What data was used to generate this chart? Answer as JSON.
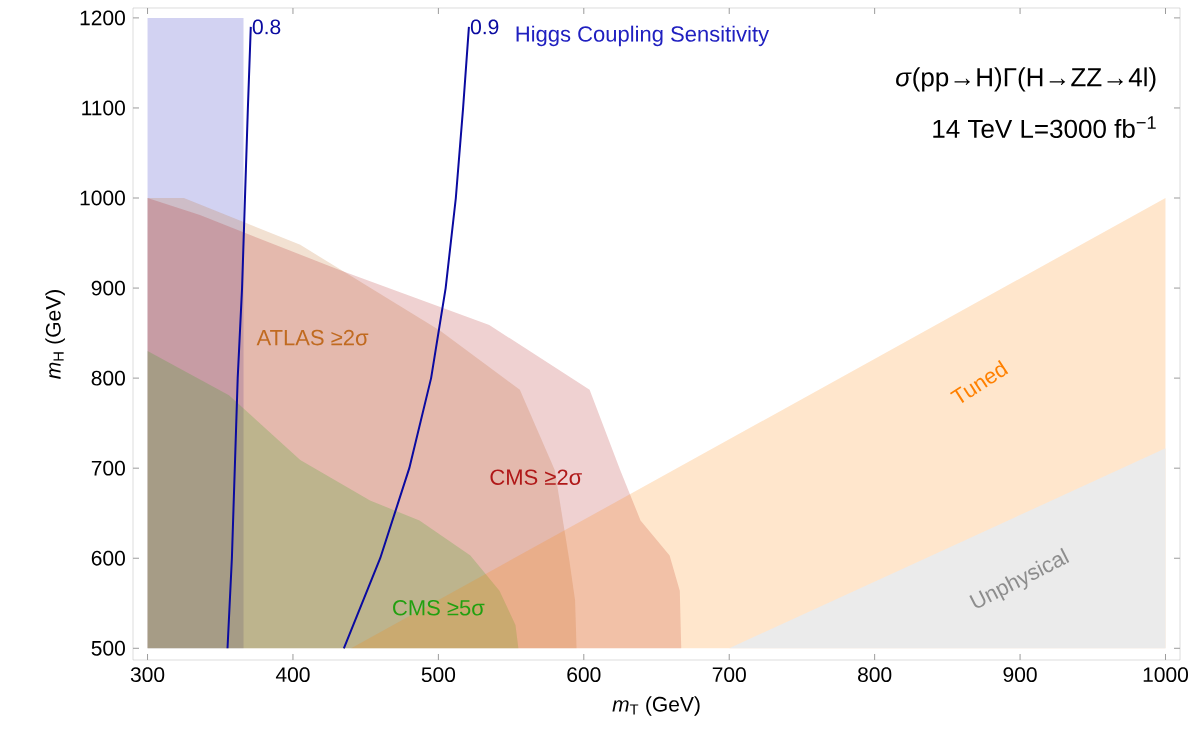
{
  "chart_data": {
    "type": "area",
    "xlabel": "*m*$_{T}$ (GeV)",
    "ylabel": "*m*$_{H}$ (GeV)",
    "annotations": [
      "*σ*(pp→H)Γ(H→ZZ→4l)",
      "14 TeV L=3000 fb$^{−1}$"
    ],
    "xlim": [
      290,
      1010
    ],
    "ylim": [
      487,
      1211
    ],
    "xticks": [
      300,
      400,
      500,
      600,
      700,
      800,
      900,
      1000
    ],
    "yticks": [
      500,
      600,
      700,
      800,
      900,
      1000,
      1100,
      1200
    ],
    "grid": false,
    "series": [
      {
        "name": "Higgs Coupling Sensitivity",
        "color": "#2020c0",
        "x": [
          300,
          366
        ],
        "values": [
          1200,
          1200
        ]
      },
      {
        "name": "ATLAS ≥2σ",
        "color": "#c06a20",
        "x": [
          300,
          325,
          405,
          501,
          556,
          580,
          590,
          594,
          595
        ],
        "values": [
          1000,
          1000,
          948,
          853,
          787,
          698,
          598,
          553,
          500
        ]
      },
      {
        "name": "CMS ≥2σ",
        "color": "#b01818",
        "x": [
          300,
          336,
          432,
          535,
          604,
          625,
          639,
          659,
          666,
          667
        ],
        "values": [
          1000,
          981,
          920,
          859,
          787,
          698,
          642,
          603,
          564,
          500
        ]
      },
      {
        "name": "CMS ≥5σ",
        "color": "#22a010",
        "x": [
          300,
          356,
          405,
          453,
          487,
          522,
          542,
          553,
          555
        ],
        "values": [
          830,
          781,
          709,
          664,
          642,
          603,
          564,
          526,
          500
        ]
      },
      {
        "name": "Tuned",
        "color": "#ff8000",
        "x": [
          440,
          700,
          1000
        ],
        "values": [
          500,
          732,
          1000
        ]
      },
      {
        "name": "Unphysical",
        "color": "#ebebeb",
        "x": [
          700,
          1000
        ],
        "values": [
          500,
          722
        ]
      },
      {
        "name": "0.8",
        "type": "line",
        "color": "#0a0aa0",
        "x": [
          355,
          358,
          360,
          362,
          365,
          367,
          369,
          371
        ],
        "values": [
          500,
          600,
          700,
          800,
          900,
          1000,
          1100,
          1190
        ]
      },
      {
        "name": "0.9",
        "type": "line",
        "color": "#0a0aa0",
        "x": [
          435,
          460,
          480,
          495,
          505,
          512,
          517,
          521
        ],
        "values": [
          500,
          600,
          700,
          800,
          900,
          1000,
          1100,
          1190
        ]
      }
    ]
  }
}
